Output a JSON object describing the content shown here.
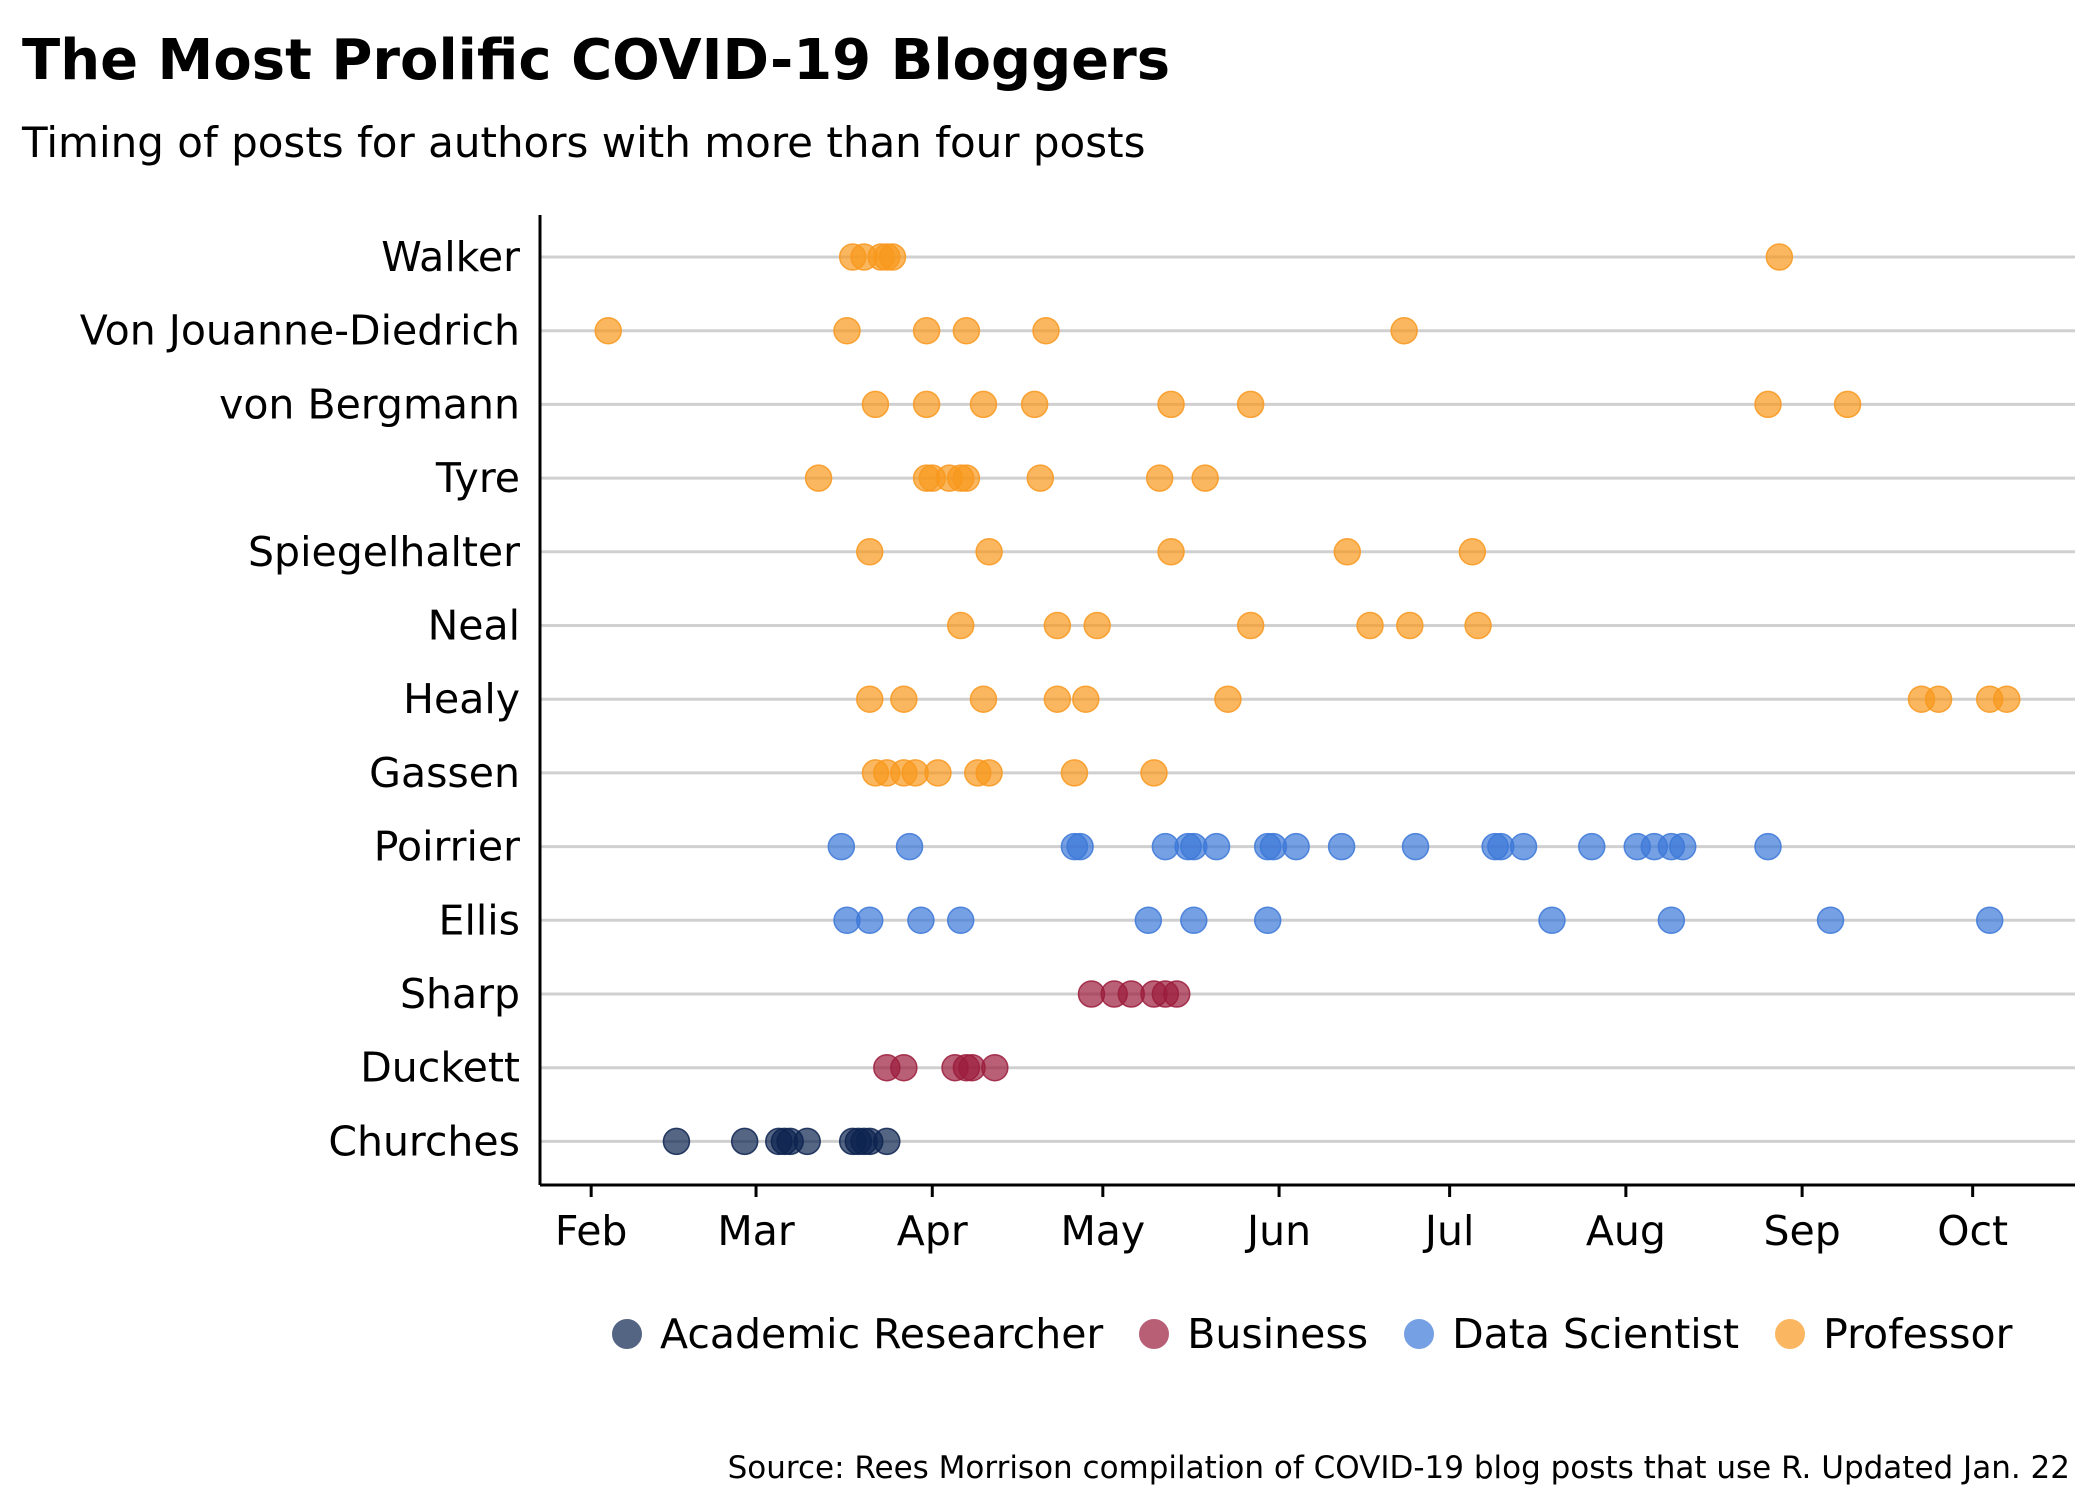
{
  "chart_data": {
    "type": "scatter",
    "title": "The Most Prolific COVID-19 Bloggers",
    "subtitle": "Timing of posts for authors with more than four posts",
    "caption": "Source: Rees Morrison compilation of COVID-19 blog posts that use R. Updated Jan. 22",
    "x_ticks": [
      "Feb",
      "Mar",
      "Apr",
      "May",
      "Jun",
      "Jul",
      "Aug",
      "Sep",
      "Oct"
    ],
    "x_tick_dates": [
      "2020-02-01",
      "2020-03-01",
      "2020-04-01",
      "2020-05-01",
      "2020-06-01",
      "2020-07-01",
      "2020-08-01",
      "2020-09-01",
      "2020-10-01"
    ],
    "xlim": [
      "2020-01-23",
      "2020-10-19"
    ],
    "grid": "horizontal",
    "legend_position": "bottom",
    "categories": [
      "Walker",
      "Von Jouanne-Diedrich",
      "von Bergmann",
      "Tyre",
      "Spiegelhalter",
      "Neal",
      "Healy",
      "Gassen",
      "Poirrier",
      "Ellis",
      "Sharp",
      "Duckett",
      "Churches"
    ],
    "groups": [
      {
        "name": "Academic Researcher",
        "color": "#0d2350"
      },
      {
        "name": "Business",
        "color": "#9b1c3c"
      },
      {
        "name": "Data Scientist",
        "color": "#3c78d8"
      },
      {
        "name": "Professor",
        "color": "#f8981d"
      }
    ],
    "series": [
      {
        "name": "Walker",
        "group": "Professor",
        "dates": [
          "2020-03-18",
          "2020-03-20",
          "2020-03-23",
          "2020-03-24",
          "2020-03-25",
          "2020-08-28"
        ]
      },
      {
        "name": "Von Jouanne-Diedrich",
        "group": "Professor",
        "dates": [
          "2020-02-04",
          "2020-03-17",
          "2020-03-31",
          "2020-04-07",
          "2020-04-21",
          "2020-06-23"
        ]
      },
      {
        "name": "von Bergmann",
        "group": "Professor",
        "dates": [
          "2020-03-22",
          "2020-03-31",
          "2020-04-10",
          "2020-04-19",
          "2020-05-13",
          "2020-05-27",
          "2020-08-26",
          "2020-09-09"
        ]
      },
      {
        "name": "Tyre",
        "group": "Professor",
        "dates": [
          "2020-03-12",
          "2020-03-31",
          "2020-04-01",
          "2020-04-04",
          "2020-04-06",
          "2020-04-07",
          "2020-04-20",
          "2020-05-11",
          "2020-05-19"
        ]
      },
      {
        "name": "Spiegelhalter",
        "group": "Professor",
        "dates": [
          "2020-03-21",
          "2020-04-11",
          "2020-05-13",
          "2020-06-13",
          "2020-07-05"
        ]
      },
      {
        "name": "Neal",
        "group": "Professor",
        "dates": [
          "2020-04-06",
          "2020-04-23",
          "2020-04-30",
          "2020-05-27",
          "2020-06-17",
          "2020-06-24",
          "2020-07-06"
        ]
      },
      {
        "name": "Healy",
        "group": "Professor",
        "dates": [
          "2020-03-21",
          "2020-03-27",
          "2020-04-10",
          "2020-04-23",
          "2020-04-28",
          "2020-05-23",
          "2020-09-22",
          "2020-09-25",
          "2020-10-04",
          "2020-10-07"
        ]
      },
      {
        "name": "Gassen",
        "group": "Professor",
        "dates": [
          "2020-03-22",
          "2020-03-24",
          "2020-03-27",
          "2020-03-29",
          "2020-04-02",
          "2020-04-09",
          "2020-04-11",
          "2020-04-26",
          "2020-05-10"
        ]
      },
      {
        "name": "Poirrier",
        "group": "Data Scientist",
        "dates": [
          "2020-03-16",
          "2020-03-28",
          "2020-04-26",
          "2020-04-27",
          "2020-05-12",
          "2020-05-16",
          "2020-05-17",
          "2020-05-21",
          "2020-05-30",
          "2020-05-31",
          "2020-06-04",
          "2020-06-12",
          "2020-06-25",
          "2020-07-09",
          "2020-07-10",
          "2020-07-14",
          "2020-07-26",
          "2020-08-03",
          "2020-08-06",
          "2020-08-09",
          "2020-08-11",
          "2020-08-26"
        ]
      },
      {
        "name": "Ellis",
        "group": "Data Scientist",
        "dates": [
          "2020-03-17",
          "2020-03-21",
          "2020-03-30",
          "2020-04-06",
          "2020-05-09",
          "2020-05-17",
          "2020-05-30",
          "2020-07-19",
          "2020-08-09",
          "2020-09-06",
          "2020-10-04"
        ]
      },
      {
        "name": "Sharp",
        "group": "Business",
        "dates": [
          "2020-04-29",
          "2020-05-03",
          "2020-05-06",
          "2020-05-10",
          "2020-05-12",
          "2020-05-14"
        ]
      },
      {
        "name": "Duckett",
        "group": "Business",
        "dates": [
          "2020-03-24",
          "2020-03-27",
          "2020-04-05",
          "2020-04-07",
          "2020-04-08",
          "2020-04-12"
        ]
      },
      {
        "name": "Churches",
        "group": "Academic Researcher",
        "dates": [
          "2020-02-16",
          "2020-02-28",
          "2020-03-05",
          "2020-03-06",
          "2020-03-07",
          "2020-03-10",
          "2020-03-18",
          "2020-03-19",
          "2020-03-20",
          "2020-03-21",
          "2020-03-24"
        ]
      }
    ]
  }
}
